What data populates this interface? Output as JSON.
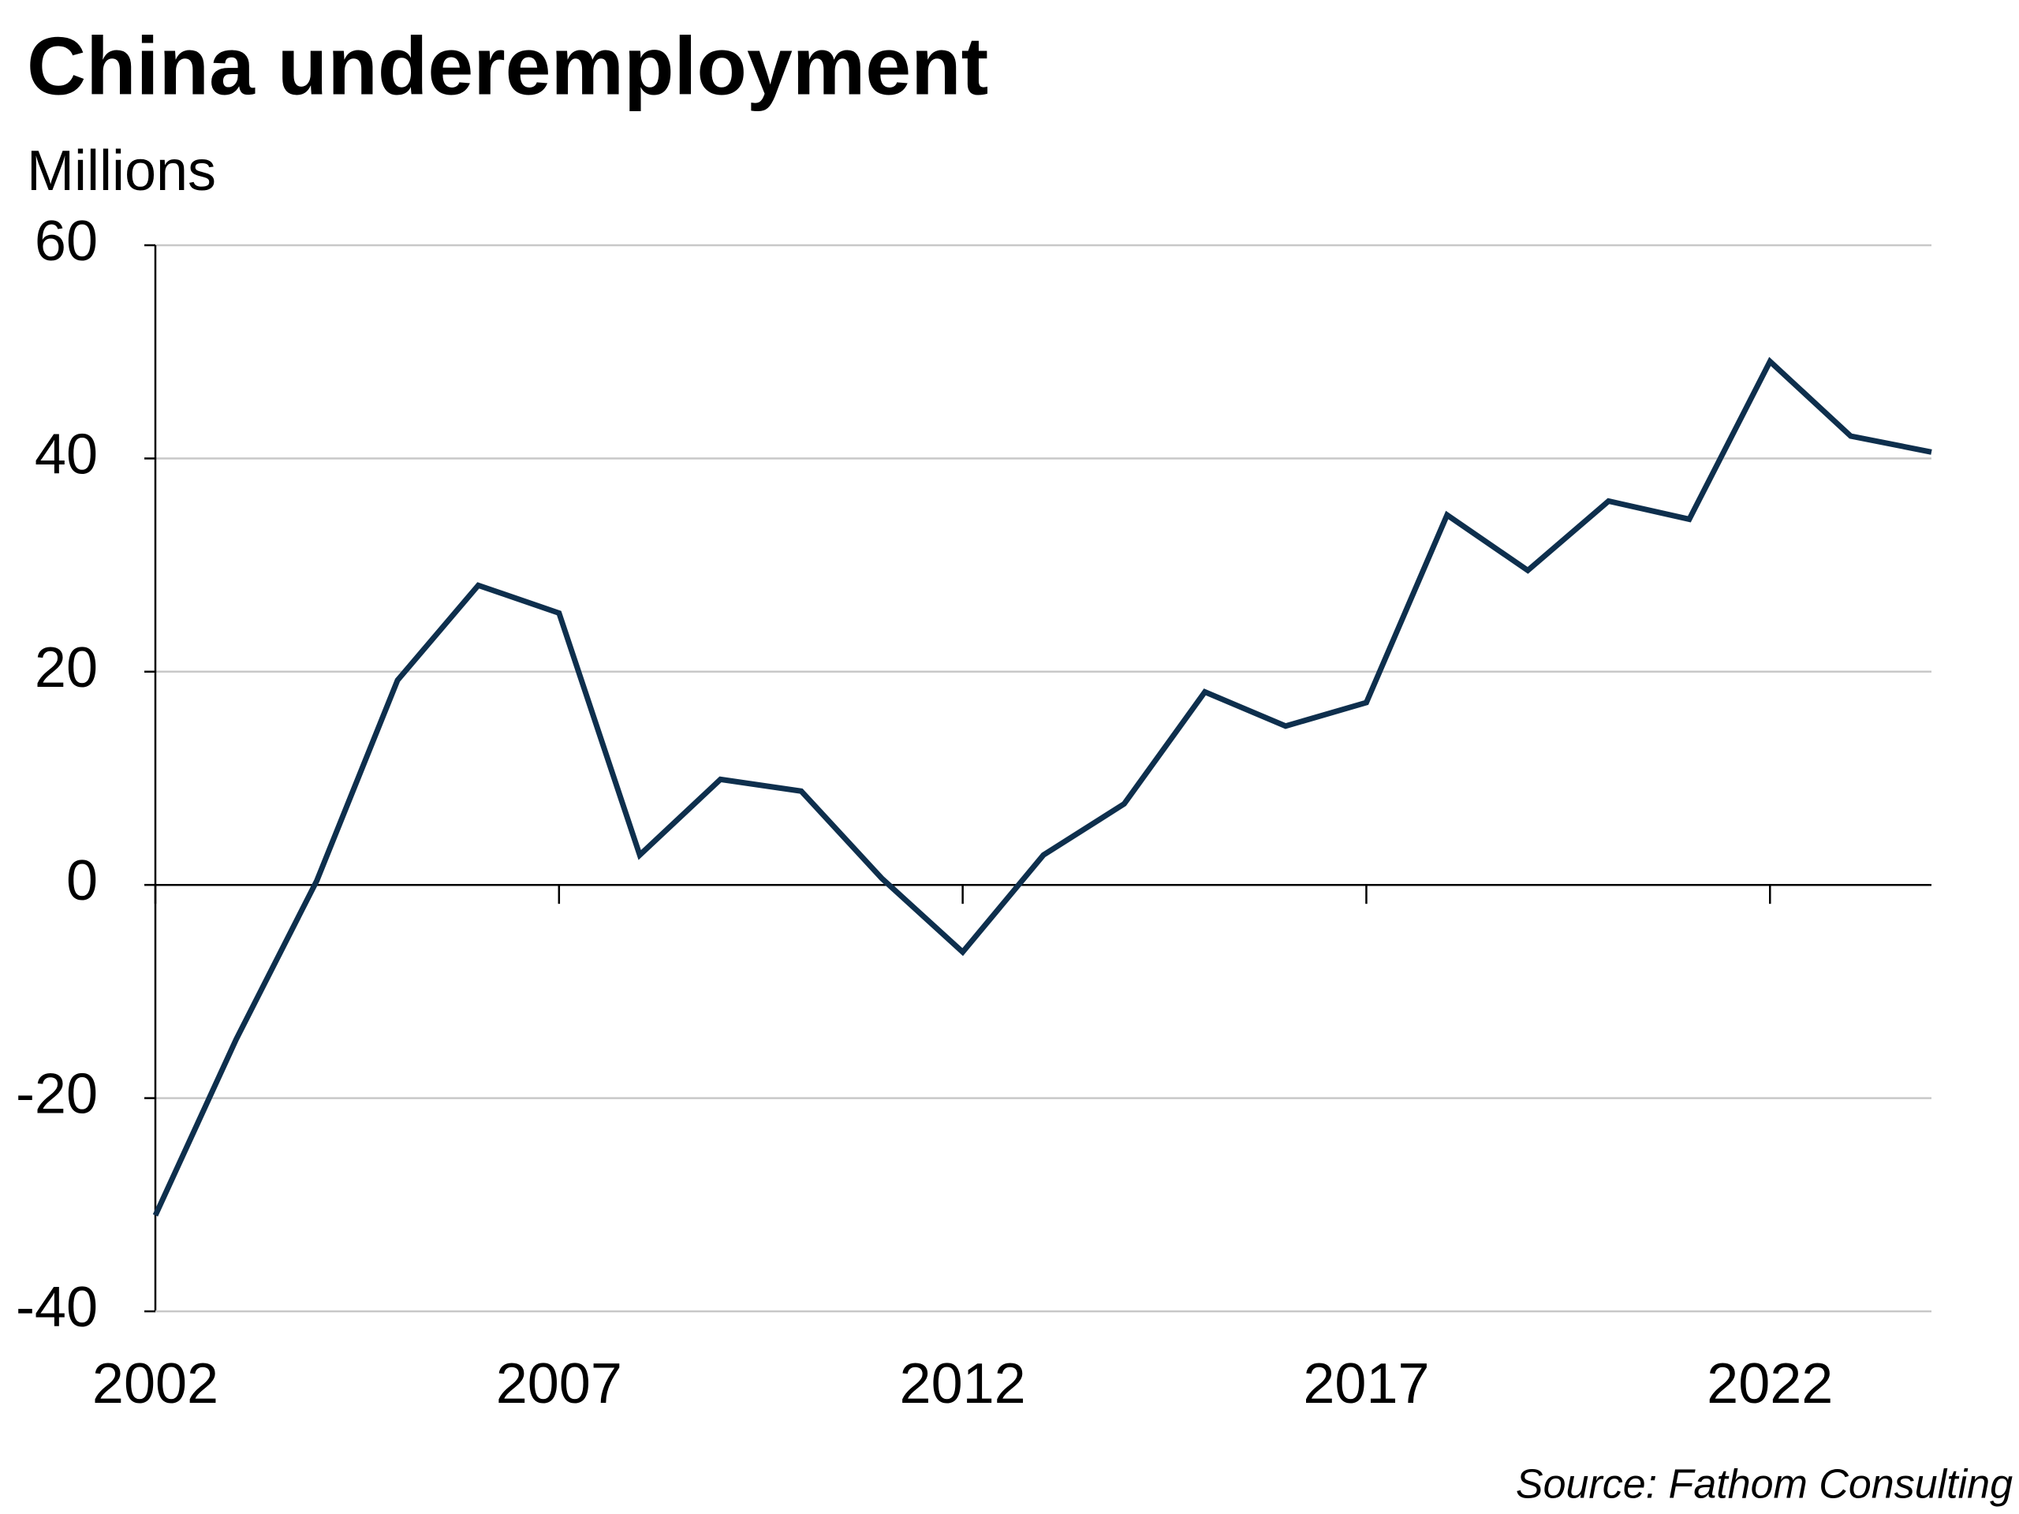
{
  "chart_data": {
    "type": "line",
    "title": "China underemployment",
    "subtitle": "Millions",
    "source": "Source: Fathom Consulting",
    "x": [
      2002,
      2003,
      2004,
      2005,
      2006,
      2007,
      2008,
      2009,
      2010,
      2011,
      2012,
      2013,
      2014,
      2015,
      2016,
      2017,
      2018,
      2019,
      2020,
      2021,
      2022,
      2023,
      2024
    ],
    "series": [
      {
        "color": "#0e2f4d",
        "values": [
          -31,
          -14.5,
          0.4,
          19.2,
          28.1,
          25.5,
          2.8,
          9.9,
          8.8,
          0.6,
          -6.3,
          2.8,
          7.6,
          18.1,
          14.9,
          17.1,
          34.7,
          29.5,
          36.0,
          34.3,
          49.1,
          42.1,
          40.6
        ]
      }
    ],
    "xlim": [
      2002,
      2024
    ],
    "xticks": [
      2002,
      2007,
      2012,
      2017,
      2022
    ],
    "ylim": [
      -40,
      60
    ],
    "yticks": [
      -40,
      -20,
      0,
      20,
      40,
      60
    ],
    "grid": true
  }
}
